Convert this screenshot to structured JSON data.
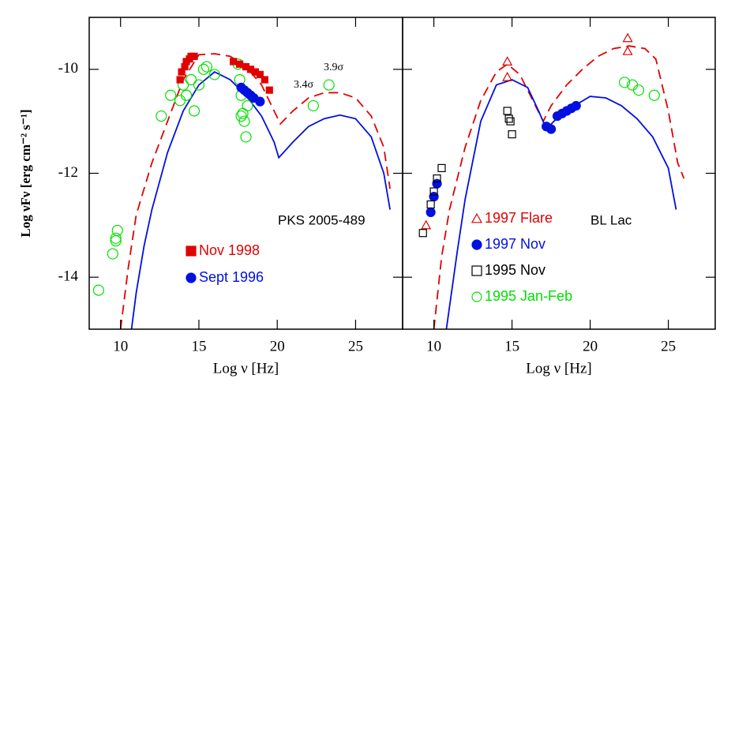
{
  "chart_data": [
    {
      "type": "scatter",
      "y_label": "Log νFν [erg cm⁻² s⁻¹]",
      "x_label": "Log ν [Hz]",
      "xlim": [
        8,
        28
      ],
      "ylim": [
        -15,
        -9
      ],
      "xticks": [
        10,
        15,
        20,
        25
      ],
      "yticks": [
        -14,
        -12,
        -10
      ],
      "ytick_labels": true,
      "annotations": [
        "PKS 2005-489",
        "3.4σ",
        "3.9σ"
      ],
      "series": [
        {
          "mode": "line",
          "color": "#e00000",
          "dash": true,
          "x": [
            10,
            10.5,
            11,
            12,
            13,
            14,
            15,
            16,
            17,
            18,
            19,
            19.8,
            20.2,
            21,
            22,
            23,
            24,
            25,
            26,
            26.8,
            27.2
          ],
          "values": [
            -15,
            -13.8,
            -12.8,
            -11.8,
            -11,
            -10.2,
            -9.72,
            -9.7,
            -9.75,
            -9.95,
            -10.3,
            -10.8,
            -11.05,
            -10.8,
            -10.55,
            -10.45,
            -10.45,
            -10.55,
            -10.9,
            -11.5,
            -12.3
          ]
        },
        {
          "mode": "line",
          "color": "#0010e0",
          "dash": false,
          "x": [
            10.7,
            11,
            11.5,
            12,
            13,
            14,
            15,
            16,
            17,
            18,
            19,
            19.8,
            20.1,
            21,
            22,
            23,
            24,
            25,
            26,
            26.8,
            27.2
          ],
          "values": [
            -15,
            -14.3,
            -13.4,
            -12.7,
            -11.6,
            -10.8,
            -10.3,
            -10.05,
            -10.2,
            -10.5,
            -10.9,
            -11.4,
            -11.7,
            -11.4,
            -11.1,
            -10.95,
            -10.88,
            -10.95,
            -11.3,
            -12,
            -12.7
          ]
        },
        {
          "mode": "marker",
          "marker": "circle",
          "filled": false,
          "color": "#00e000",
          "x": [
            8.6,
            9.5,
            9.7,
            9.8,
            9.7,
            12.6,
            13.2,
            13.8,
            14,
            14.2,
            14.5,
            14.7,
            15,
            15.3,
            15.5,
            16,
            17.5,
            17.6,
            17.7,
            17.8,
            17.9,
            18,
            17.7,
            18.1,
            22.3,
            23.3
          ],
          "values": [
            -14.25,
            -13.55,
            -13.25,
            -13.1,
            -13.3,
            -10.9,
            -10.5,
            -10.6,
            -10.3,
            -10.5,
            -10.2,
            -10.8,
            -10.3,
            -10,
            -9.95,
            -10.1,
            -9.9,
            -10.2,
            -10.5,
            -10.85,
            -11,
            -11.3,
            -10.9,
            -10.7,
            -10.7,
            -10.3
          ]
        },
        {
          "mode": "marker",
          "marker": "square",
          "filled": true,
          "color": "#e00000",
          "name": "Nov 1998",
          "x": [
            13.8,
            13.9,
            14.1,
            14.2,
            14.4,
            14.5,
            14.7,
            17.2,
            17.6,
            18,
            18.3,
            18.6,
            18.9,
            19.2,
            19.5
          ],
          "values": [
            -10.2,
            -10.05,
            -9.95,
            -9.85,
            -9.8,
            -9.75,
            -9.75,
            -9.85,
            -9.9,
            -9.95,
            -10,
            -10.05,
            -10.1,
            -10.2,
            -10.4
          ]
        },
        {
          "mode": "marker",
          "marker": "circle",
          "filled": true,
          "color": "#0010e0",
          "name": "Sept 1996",
          "x": [
            17.7,
            17.9,
            18.1,
            18.3,
            18.5,
            18.9
          ],
          "values": [
            -10.35,
            -10.4,
            -10.45,
            -10.5,
            -10.55,
            -10.62
          ]
        }
      ]
    },
    {
      "type": "scatter",
      "x_label": "Log ν [Hz]",
      "xlim": [
        8,
        28
      ],
      "ylim": [
        -15,
        -9
      ],
      "xticks": [
        10,
        15,
        20,
        25
      ],
      "yticks": [
        -14,
        -12,
        -10
      ],
      "ytick_labels": false,
      "annotations": [
        "BL Lac"
      ],
      "series": [
        {
          "mode": "line",
          "color": "#e00000",
          "dash": true,
          "x": [
            10,
            10.5,
            11,
            12,
            13,
            14,
            14.7,
            15.5,
            16.5,
            17,
            17.5,
            18.5,
            19.5,
            20.5,
            21.5,
            22.5,
            23.5,
            24.2,
            25,
            25.6,
            26
          ],
          "values": [
            -15,
            -13.6,
            -12.7,
            -11.5,
            -10.6,
            -10.05,
            -9.9,
            -10.1,
            -10.7,
            -11,
            -10.7,
            -10.3,
            -10,
            -9.75,
            -9.6,
            -9.55,
            -9.6,
            -9.8,
            -10.8,
            -11.8,
            -12.1
          ]
        },
        {
          "mode": "line",
          "color": "#0010e0",
          "dash": false,
          "x": [
            10.8,
            11.5,
            12,
            13,
            14,
            15,
            16,
            16.7,
            17.2,
            18,
            19,
            20,
            21,
            22,
            23,
            24,
            25,
            25.5
          ],
          "values": [
            -15,
            -13.5,
            -12.5,
            -11,
            -10.3,
            -10.2,
            -10.35,
            -10.8,
            -11.15,
            -10.9,
            -10.7,
            -10.52,
            -10.55,
            -10.7,
            -10.95,
            -11.3,
            -11.9,
            -12.7
          ]
        },
        {
          "mode": "marker",
          "marker": "triangle",
          "filled": false,
          "color": "#e00000",
          "name": "1997 Flare",
          "x": [
            9.5,
            14.7,
            14.7,
            22.4,
            22.4
          ],
          "values": [
            -13,
            -9.85,
            -10.15,
            -9.4,
            -9.65
          ]
        },
        {
          "mode": "marker",
          "marker": "circle",
          "filled": true,
          "color": "#0010e0",
          "name": "1997 Nov",
          "x": [
            9.8,
            10,
            10.2,
            17.2,
            17.5,
            17.9,
            18.2,
            18.5,
            18.8,
            19.1
          ],
          "values": [
            -12.75,
            -12.45,
            -12.2,
            -11.1,
            -11.15,
            -10.9,
            -10.85,
            -10.8,
            -10.75,
            -10.7
          ]
        },
        {
          "mode": "marker",
          "marker": "square",
          "filled": false,
          "color": "#000000",
          "name": "1995 Nov",
          "x": [
            9.3,
            9.8,
            10,
            10.2,
            10.5,
            14.7,
            14.8,
            14.9,
            15
          ],
          "values": [
            -13.15,
            -12.6,
            -12.35,
            -12.1,
            -11.9,
            -10.8,
            -10.95,
            -11,
            -11.25
          ]
        },
        {
          "mode": "marker",
          "marker": "circle",
          "filled": false,
          "color": "#00e000",
          "name": "1995 Jan-Feb",
          "x": [
            22.2,
            22.7,
            23.1,
            24.1
          ],
          "values": [
            -10.25,
            -10.3,
            -10.4,
            -10.5
          ]
        }
      ]
    }
  ]
}
